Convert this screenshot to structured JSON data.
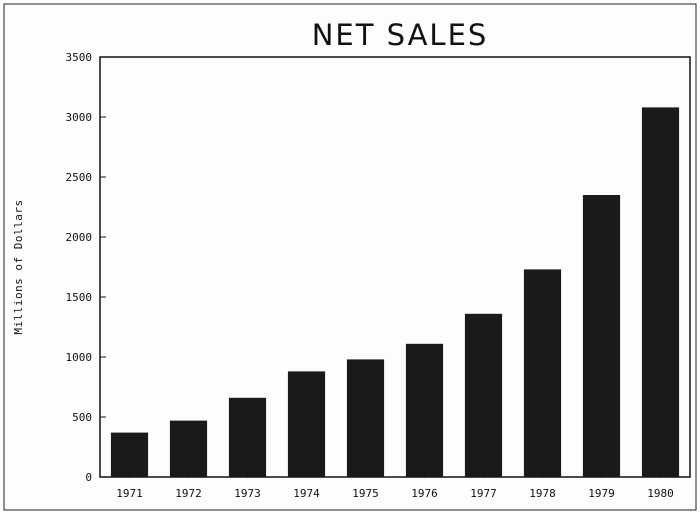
{
  "chart_data": {
    "type": "bar",
    "title": "NET SALES",
    "xlabel": "",
    "ylabel": "Millions of Dollars",
    "categories": [
      "1971",
      "1972",
      "1973",
      "1974",
      "1975",
      "1976",
      "1977",
      "1978",
      "1979",
      "1980"
    ],
    "values": [
      370,
      470,
      660,
      880,
      980,
      1110,
      1360,
      1730,
      2350,
      3080
    ],
    "ylim": [
      0,
      3500
    ],
    "yticks": [
      0,
      500,
      1000,
      1500,
      2000,
      2500,
      3000,
      3500
    ],
    "grid": false,
    "legend": "none",
    "colors": {
      "bar": "#1a1a1a",
      "axis": "#111111",
      "background": "#fdfdfb"
    }
  }
}
